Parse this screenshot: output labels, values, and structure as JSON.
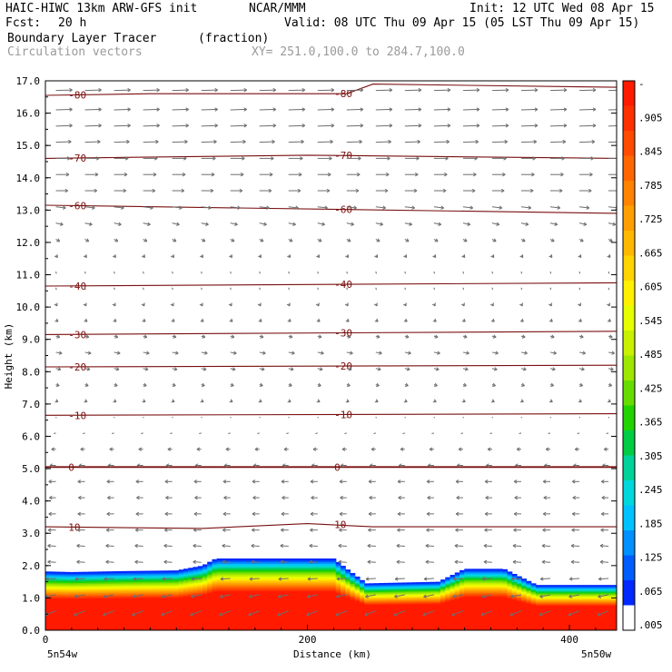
{
  "header": {
    "model": "HAIC-HIWC 13km ARW-GFS init",
    "org": "NCAR/MMM",
    "init": "Init: 12 UTC Wed 08 Apr 15",
    "fcst_label": "Fcst:",
    "fcst_value": "20 h",
    "valid": "Valid: 08 UTC Thu 09 Apr 15 (05 LST Thu 09 Apr 15)",
    "field": "Boundary Layer Tracer",
    "field_units": "(fraction)",
    "overlay": "Circulation vectors",
    "xy": "XY= 251.0,100.0 to 284.7,100.0"
  },
  "chart_data": {
    "type": "heatmap",
    "title": "Boundary Layer Tracer",
    "units": "fraction",
    "xlabel": "Distance (km)",
    "ylabel": "Height (km)",
    "xlim": [
      0,
      436
    ],
    "ylim": [
      0,
      17
    ],
    "x_ticks": [
      0,
      200,
      400
    ],
    "y_ticks": [
      "0.0",
      "1.0",
      "2.0",
      "3.0",
      "4.0",
      "5.0",
      "6.0",
      "7.0",
      "8.0",
      "9.0",
      "10.0",
      "11.0",
      "12.0",
      "13.0",
      "14.0",
      "15.0",
      "16.0",
      "17.0"
    ],
    "x_endpoints": [
      "5n54w",
      "5n50w"
    ],
    "colorbar_labels": [
      "-",
      ".905",
      ".845",
      ".785",
      ".725",
      ".665",
      ".605",
      ".545",
      ".485",
      ".425",
      ".365",
      ".305",
      ".245",
      ".185",
      ".125",
      ".065",
      ".005"
    ],
    "colorbar_colors": [
      "#ff1a00",
      "#ff3000",
      "#ff4a00",
      "#ff6600",
      "#ff8200",
      "#ff9e00",
      "#ffb800",
      "#ffd400",
      "#fff000",
      "#e6ff00",
      "#c8f000",
      "#9ce600",
      "#66dc00",
      "#22d300",
      "#00cc44",
      "#00d29a",
      "#00d8dc",
      "#00c2ff",
      "#0090ff",
      "#005cff",
      "#0028ff",
      "#ffffff"
    ],
    "tracer_top_km": [
      [
        0,
        1.82
      ],
      [
        20,
        1.8
      ],
      [
        60,
        1.83
      ],
      [
        100,
        1.85
      ],
      [
        120,
        2.0
      ],
      [
        130,
        2.22
      ],
      [
        220,
        2.22
      ],
      [
        230,
        1.9
      ],
      [
        245,
        1.45
      ],
      [
        300,
        1.5
      ],
      [
        320,
        1.9
      ],
      [
        350,
        1.9
      ],
      [
        375,
        1.4
      ],
      [
        436,
        1.4
      ]
    ],
    "temperature_contours": [
      {
        "label": "-80",
        "x": [
          0,
          80,
          230,
          250,
          436
        ],
        "y": [
          16.55,
          16.6,
          16.6,
          16.9,
          16.8
        ]
      },
      {
        "label": "-70",
        "x": [
          0,
          200,
          436
        ],
        "y": [
          14.6,
          14.7,
          14.6
        ]
      },
      {
        "label": "-60",
        "x": [
          0,
          436
        ],
        "y": [
          13.15,
          12.9
        ]
      },
      {
        "label": "-40",
        "x": [
          0,
          436
        ],
        "y": [
          10.65,
          10.75
        ]
      },
      {
        "label": "-30",
        "x": [
          0,
          436
        ],
        "y": [
          9.15,
          9.25
        ]
      },
      {
        "label": "-20",
        "x": [
          0,
          436
        ],
        "y": [
          8.15,
          8.2
        ]
      },
      {
        "label": "-10",
        "x": [
          0,
          436
        ],
        "y": [
          6.65,
          6.7
        ]
      },
      {
        "label": "0",
        "x": [
          0,
          436
        ],
        "y": [
          5.05,
          5.05
        ]
      },
      {
        "label": "10",
        "x": [
          0,
          120,
          200,
          250,
          436
        ],
        "y": [
          3.2,
          3.15,
          3.3,
          3.2,
          3.2
        ]
      }
    ],
    "vector_rows_km": [
      16.7,
      16.1,
      15.6,
      15.1,
      14.6,
      14.1,
      13.6,
      13.1,
      12.6,
      12.1,
      11.6,
      11.1,
      10.6,
      10.1,
      9.6,
      9.1,
      8.6,
      8.1,
      7.6,
      7.1,
      6.6,
      6.1,
      5.6,
      5.1,
      4.6,
      4.1,
      3.6,
      3.1,
      2.6,
      2.1,
      1.6,
      1.1,
      0.6
    ],
    "vector_u": [
      3.0,
      3.0,
      3.0,
      2.8,
      2.6,
      2.4,
      2.2,
      1.8,
      1.3,
      0.7,
      0.3,
      0.1,
      0.1,
      0.2,
      0.4,
      0.7,
      1.1,
      0.9,
      0.6,
      0.4,
      0.1,
      -0.4,
      -0.8,
      -1.1,
      -1.3,
      -1.2,
      -1.3,
      -1.4,
      -1.5,
      -1.5,
      -1.8,
      -1.9,
      -2.0
    ],
    "vector_w": [
      0.1,
      0.1,
      0.1,
      0.1,
      0.0,
      0.0,
      0.0,
      -0.2,
      -0.3,
      -0.4,
      -0.4,
      -0.4,
      -0.4,
      -0.4,
      -0.3,
      -0.2,
      -0.2,
      -0.2,
      -0.2,
      -0.2,
      -0.2,
      -0.1,
      0.0,
      0.0,
      0.0,
      0.0,
      0.0,
      0.0,
      0.1,
      0.1,
      -0.1,
      -0.4,
      -0.8
    ]
  }
}
